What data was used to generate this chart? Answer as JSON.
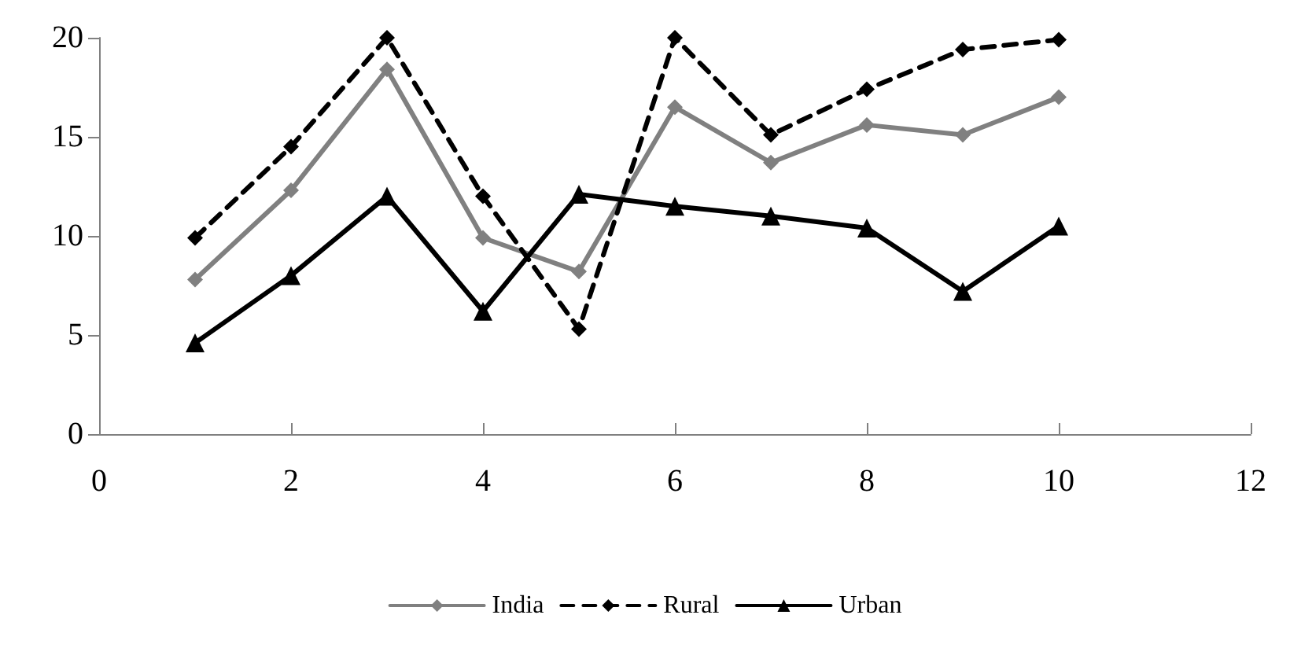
{
  "chart_data": {
    "type": "line",
    "x": [
      1,
      2,
      3,
      4,
      5,
      6,
      7,
      8,
      9,
      10
    ],
    "series": [
      {
        "name": "India",
        "color": "#808080",
        "marker": "diamond",
        "line_style": "solid",
        "values": [
          7.8,
          12.3,
          18.4,
          9.9,
          8.2,
          16.5,
          13.7,
          15.6,
          15.1,
          17.0
        ]
      },
      {
        "name": "Rural",
        "color": "#000000",
        "marker": "diamond",
        "line_style": "dashed",
        "values": [
          9.9,
          14.5,
          20,
          12.0,
          5.3,
          20.0,
          15.1,
          17.4,
          19.4,
          19.9
        ]
      },
      {
        "name": "Urban",
        "color": "#000000",
        "marker": "triangle",
        "line_style": "solid",
        "values": [
          4.6,
          8.0,
          12.0,
          6.2,
          12.1,
          11.5,
          11.0,
          10.4,
          7.2,
          10.5
        ]
      }
    ],
    "xlim": [
      0,
      12
    ],
    "xticks": [
      0,
      2,
      4,
      6,
      8,
      10,
      12
    ],
    "ylim": [
      0,
      20
    ],
    "yticks": [
      0,
      5,
      10,
      15,
      20
    ],
    "grid": false,
    "legend": "bottom"
  }
}
